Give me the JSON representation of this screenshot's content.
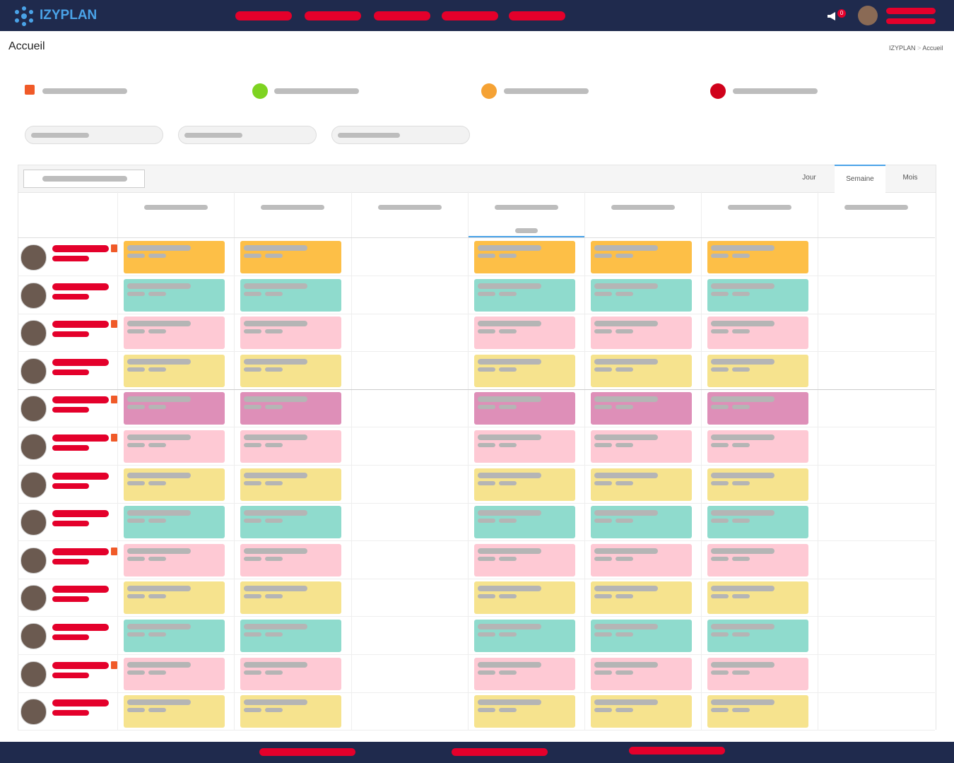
{
  "header": {
    "logo": "IZYPLAN",
    "badge": "0"
  },
  "page": {
    "title": "Accueil",
    "breadcrumb": [
      "IZYPLAN",
      "Accueil"
    ]
  },
  "view_tabs": [
    "Jour",
    "Semaine",
    "Mois"
  ]
}
